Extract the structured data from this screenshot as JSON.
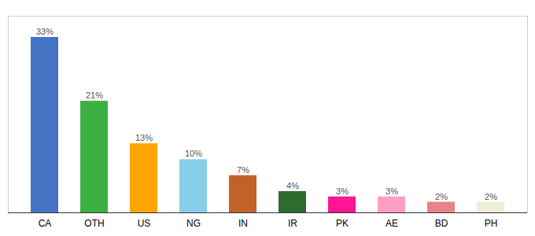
{
  "chart_data": {
    "type": "bar",
    "categories": [
      "CA",
      "OTH",
      "US",
      "NG",
      "IN",
      "IR",
      "PK",
      "AE",
      "BD",
      "PH"
    ],
    "values": [
      33,
      21,
      13,
      10,
      7,
      4,
      3,
      3,
      2,
      2
    ],
    "value_labels": [
      "33%",
      "21%",
      "13%",
      "10%",
      "7%",
      "4%",
      "3%",
      "3%",
      "2%",
      "2%"
    ],
    "colors": [
      "#4472C4",
      "#3CB043",
      "#FFA500",
      "#87CEEB",
      "#C0622A",
      "#2E6B2E",
      "#FF1493",
      "#FF9EC4",
      "#E8828A",
      "#F0EDD8"
    ],
    "ylim": [
      0,
      37
    ],
    "data_labels": true,
    "tick_labels": "x",
    "grid": false
  }
}
